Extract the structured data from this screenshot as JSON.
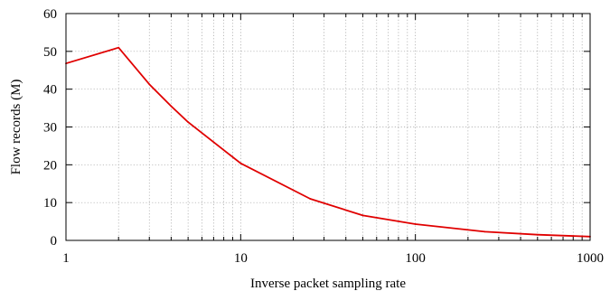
{
  "chart_data": {
    "type": "line",
    "title": "",
    "xlabel": "Inverse packet sampling rate",
    "ylabel": "Flow records (M)",
    "x_scale": "log",
    "xlim": [
      1,
      1000
    ],
    "ylim": [
      0,
      60
    ],
    "x_ticks": [
      1,
      10,
      100,
      1000
    ],
    "x_tick_labels": [
      "1",
      "10",
      "100",
      "1000"
    ],
    "y_ticks": [
      0,
      10,
      20,
      30,
      40,
      50,
      60
    ],
    "y_tick_labels": [
      "0",
      "10",
      "20",
      "30",
      "40",
      "50",
      "60"
    ],
    "grid": true,
    "legend": "none",
    "series": [
      {
        "color": "#e00000",
        "x": [
          1,
          2,
          3,
          4,
          5,
          10,
          25,
          50,
          100,
          250,
          500,
          1000
        ],
        "y": [
          46.8,
          51.0,
          41.3,
          35.5,
          31.3,
          20.4,
          11.0,
          6.6,
          4.3,
          2.3,
          1.5,
          1.0
        ]
      }
    ]
  }
}
